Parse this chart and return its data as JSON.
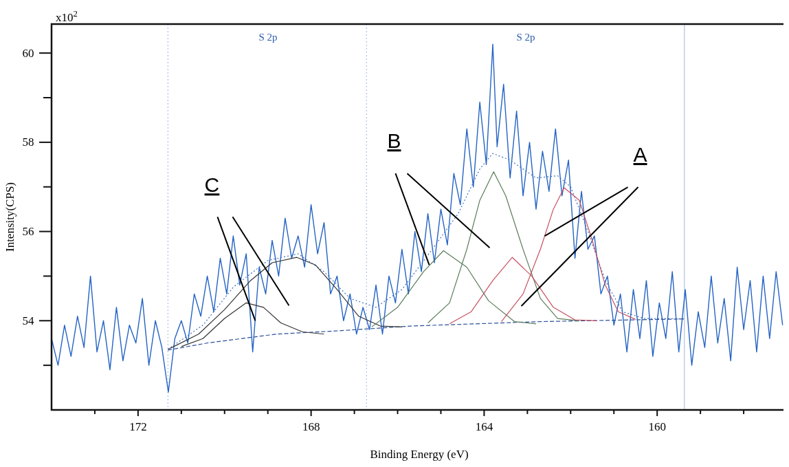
{
  "chart_data": {
    "type": "line",
    "xlabel": "Binding Energy (eV)",
    "ylabel": "Intensity(CPS)",
    "xlim": [
      174,
      157
    ],
    "ylim": [
      52,
      60.65
    ],
    "xticks": [
      {
        "value": 173,
        "label": null
      },
      172,
      {
        "value": 171,
        "label": null
      },
      {
        "value": 170,
        "label": null
      },
      {
        "value": 169,
        "label": null
      },
      168,
      {
        "value": 167,
        "label": null
      },
      {
        "value": 166,
        "label": null
      },
      {
        "value": 165,
        "label": null
      },
      164,
      {
        "value": 163,
        "label": null
      },
      {
        "value": 162,
        "label": null
      },
      {
        "value": 161,
        "label": null
      },
      160,
      {
        "value": 159,
        "label": null
      },
      {
        "value": 158,
        "label": null
      },
      {
        "value": 157,
        "label": null
      }
    ],
    "yticks": [
      {
        "value": 53,
        "label": null
      },
      54,
      {
        "value": 55,
        "label": null
      },
      56,
      {
        "value": 57,
        "label": null
      },
      58,
      {
        "value": 59,
        "label": null
      },
      60
    ],
    "ref_lines": [
      {
        "axis": "x",
        "value": 171.31,
        "color": "#9fb3d6",
        "line_style": "dotted"
      },
      {
        "axis": "x",
        "value": 166.72,
        "color": "#9fb3d6",
        "line_style": "dotted"
      },
      {
        "axis": "x",
        "value": 159.37,
        "color": "#9fb3d6",
        "line_style": "solid"
      }
    ],
    "annotations": [
      "x10$^{2}$",
      "S 2p",
      "S 2p",
      {
        "text": "C",
        "x": 169.29,
        "y": 54.0
      },
      {
        "text": "B",
        "x": 165.27,
        "y": 55.25
      },
      {
        "text": "A",
        "x": 162.6,
        "y": 55.9
      }
    ],
    "series": [
      {
        "color": "#2463c4",
        "x": [
          174.0,
          173.85,
          173.7,
          173.55,
          173.4,
          173.25,
          173.1,
          172.95,
          172.8,
          172.65,
          172.5,
          172.35,
          172.2,
          172.05,
          171.9,
          171.75,
          171.6,
          171.45,
          171.3,
          171.15,
          171.0,
          170.85,
          170.7,
          170.55,
          170.4,
          170.25,
          170.1,
          169.95,
          169.8,
          169.65,
          169.5,
          169.35,
          169.2,
          169.05,
          168.9,
          168.75,
          168.6,
          168.45,
          168.3,
          168.15,
          168.0,
          167.85,
          167.7,
          167.55,
          167.4,
          167.25,
          167.1,
          166.95,
          166.8,
          166.65,
          166.5,
          166.35,
          166.2,
          166.05,
          165.9,
          165.75,
          165.6,
          165.45,
          165.3,
          165.15,
          165.0,
          164.85,
          164.7,
          164.55,
          164.4,
          164.25,
          164.1,
          163.95,
          163.8,
          163.7,
          163.55,
          163.4,
          163.25,
          163.1,
          162.95,
          162.8,
          162.65,
          162.5,
          162.35,
          162.2,
          162.05,
          161.9,
          161.75,
          161.6,
          161.45,
          161.3,
          161.15,
          161.0,
          160.85,
          160.7,
          160.55,
          160.4,
          160.25,
          160.1,
          159.95,
          159.8,
          159.65,
          159.5,
          159.35,
          159.2,
          159.05,
          158.9,
          158.75,
          158.6,
          158.45,
          158.3,
          158.15,
          158.0,
          157.85,
          157.7,
          157.55,
          157.4,
          157.25,
          157.1
        ],
        "values": [
          53.6,
          53.0,
          53.9,
          53.2,
          54.1,
          53.4,
          55.0,
          53.3,
          54.0,
          52.9,
          54.3,
          53.1,
          53.9,
          53.5,
          54.5,
          53.0,
          54.0,
          53.4,
          52.4,
          53.6,
          54.0,
          53.5,
          54.6,
          54.1,
          55.0,
          54.2,
          55.4,
          54.6,
          55.9,
          54.8,
          55.5,
          53.3,
          55.2,
          54.6,
          55.8,
          55.0,
          56.3,
          55.4,
          55.9,
          55.2,
          56.6,
          55.5,
          56.2,
          54.6,
          55.0,
          54.0,
          54.6,
          53.7,
          54.3,
          53.8,
          54.8,
          53.7,
          55.0,
          54.4,
          55.6,
          54.6,
          56.0,
          55.1,
          56.4,
          55.3,
          56.5,
          55.7,
          57.3,
          56.6,
          58.3,
          57.0,
          58.9,
          57.5,
          60.2,
          57.9,
          59.3,
          57.2,
          58.7,
          56.8,
          58.0,
          56.5,
          57.8,
          56.9,
          58.3,
          56.8,
          57.6,
          55.4,
          56.9,
          55.6,
          55.9,
          54.6,
          55.0,
          53.9,
          54.6,
          53.3,
          54.7,
          53.6,
          54.9,
          53.2,
          54.4,
          53.6,
          55.1,
          53.3,
          54.7,
          53.0,
          54.2,
          53.4,
          55.0,
          53.5,
          54.5,
          53.1,
          55.2,
          53.8,
          54.9,
          53.3,
          55.0,
          53.6,
          55.1,
          53.9
        ]
      },
      {
        "color": "#3a6fc0",
        "line_style": "dotted",
        "x": [
          171.31,
          170.5,
          169.8,
          169.0,
          168.3,
          167.7,
          167.1,
          166.5,
          165.9,
          165.2,
          164.6,
          164.1,
          163.8,
          163.4,
          162.8,
          162.3,
          162.0,
          161.6,
          161.2,
          160.8,
          160.3,
          159.37
        ],
        "values": [
          53.36,
          53.9,
          54.75,
          55.35,
          55.5,
          55.1,
          54.5,
          54.3,
          54.7,
          55.6,
          56.4,
          57.4,
          57.75,
          57.6,
          57.2,
          57.25,
          57.0,
          56.0,
          54.9,
          54.2,
          54.05,
          54.04
        ]
      },
      {
        "color": "#2a4f9a",
        "line_style": "dashed",
        "x": [
          171.31,
          170.4,
          168.8,
          167.43,
          165.7,
          164.2,
          162.7,
          159.37
        ],
        "values": [
          53.34,
          53.5,
          53.7,
          53.77,
          53.88,
          53.93,
          53.98,
          54.04
        ]
      },
      {
        "color": "#333333",
        "x": [
          171.0,
          170.5,
          170.0,
          169.5,
          169.1,
          168.7,
          168.2,
          167.7
        ],
        "values": [
          53.42,
          53.6,
          54.05,
          54.4,
          54.3,
          53.95,
          53.75,
          53.7
        ]
      },
      {
        "color": "#333333",
        "x": [
          171.3,
          170.6,
          170.0,
          169.4,
          168.9,
          168.33,
          167.9,
          167.4,
          166.9,
          166.4,
          165.9
        ],
        "values": [
          53.36,
          53.7,
          54.25,
          54.9,
          55.3,
          55.42,
          55.25,
          54.7,
          54.1,
          53.88,
          53.86
        ]
      },
      {
        "color": "#5a7d5a",
        "x": [
          166.6,
          166.0,
          165.4,
          164.94,
          164.4,
          163.9,
          163.3,
          162.8
        ],
        "values": [
          53.86,
          54.3,
          55.1,
          55.57,
          55.2,
          54.45,
          53.98,
          53.93
        ]
      },
      {
        "color": "#5a7d5a",
        "x": [
          165.3,
          164.8,
          164.4,
          164.1,
          163.78,
          163.5,
          163.1,
          162.7,
          162.3,
          161.8
        ],
        "values": [
          53.95,
          54.4,
          55.6,
          56.7,
          57.34,
          56.8,
          55.6,
          54.5,
          54.05,
          54.0
        ]
      },
      {
        "color": "#c85060",
        "x": [
          164.8,
          164.3,
          163.8,
          163.35,
          162.9,
          162.4,
          161.9,
          161.4
        ],
        "values": [
          53.93,
          54.2,
          54.9,
          55.42,
          55.0,
          54.3,
          54.02,
          54.0
        ]
      },
      {
        "color": "#c85060",
        "x": [
          163.6,
          163.1,
          162.7,
          162.4,
          162.15,
          161.8,
          161.5,
          161.2,
          160.9,
          160.5
        ],
        "values": [
          53.98,
          54.6,
          55.6,
          56.5,
          56.98,
          56.7,
          55.8,
          54.8,
          54.2,
          54.03
        ]
      }
    ]
  }
}
